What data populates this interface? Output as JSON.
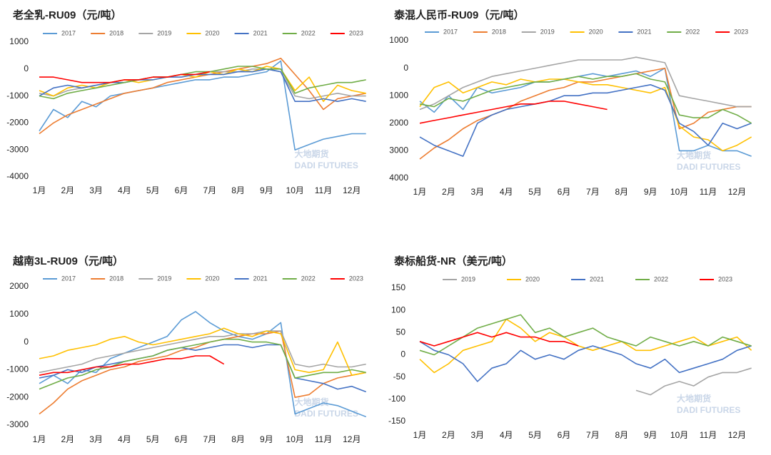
{
  "chart_data": [
    {
      "type": "line",
      "title": "老全乳-RU09（元/吨）",
      "watermark": [
        "大地期货",
        "DADI FUTURES"
      ],
      "categories": [
        "1月",
        null,
        "2月",
        null,
        "3月",
        null,
        "4月",
        null,
        "5月",
        null,
        "6月",
        null,
        "7月",
        null,
        "8月",
        null,
        "9月",
        null,
        "10月",
        null,
        "11月",
        null,
        "12月",
        null
      ],
      "ylim": [
        -4000,
        1000
      ],
      "yticks": [
        1000,
        0,
        -1000,
        -2000,
        -3000,
        -4000
      ],
      "series": [
        {
          "name": "2017",
          "color": "#5b9bd5",
          "values": [
            -2300,
            -1500,
            -1800,
            -1200,
            -1400,
            -1000,
            -900,
            -800,
            -700,
            -600,
            -500,
            -400,
            -400,
            -300,
            -300,
            -200,
            -100,
            300,
            -3000,
            -2800,
            -2600,
            -2500,
            -2400,
            -2400
          ]
        },
        {
          "name": "2018",
          "color": "#ed7d31",
          "values": [
            -2400,
            -2000,
            -1700,
            -1500,
            -1300,
            -1100,
            -900,
            -800,
            -700,
            -500,
            -400,
            -300,
            -200,
            -100,
            0,
            100,
            200,
            400,
            -200,
            -800,
            -1500,
            -1100,
            -1000,
            -900
          ]
        },
        {
          "name": "2019",
          "color": "#a5a5a5",
          "values": [
            -900,
            -1000,
            -800,
            -700,
            -600,
            -500,
            -400,
            -400,
            -300,
            -300,
            -200,
            -200,
            -100,
            -100,
            -100,
            0,
            0,
            -100,
            -1000,
            -1100,
            -1000,
            -900,
            -1000,
            -1000
          ]
        },
        {
          "name": "2020",
          "color": "#ffc000",
          "values": [
            -800,
            -1000,
            -700,
            -600,
            -700,
            -500,
            -400,
            -500,
            -400,
            -300,
            -200,
            -300,
            -100,
            -200,
            0,
            -100,
            100,
            0,
            -800,
            -300,
            -1200,
            -600,
            -800,
            -900
          ]
        },
        {
          "name": "2021",
          "color": "#4472c4",
          "values": [
            -1000,
            -700,
            -600,
            -700,
            -600,
            -500,
            -500,
            -400,
            -400,
            -300,
            -300,
            -200,
            -200,
            -200,
            -100,
            -100,
            0,
            -100,
            -1200,
            -1200,
            -1100,
            -1200,
            -1100,
            -1200
          ]
        },
        {
          "name": "2022",
          "color": "#70ad47",
          "values": [
            -1000,
            -1100,
            -900,
            -800,
            -700,
            -600,
            -500,
            -400,
            -300,
            -300,
            -200,
            -100,
            -100,
            0,
            100,
            100,
            0,
            0,
            -900,
            -700,
            -600,
            -500,
            -500,
            -400
          ]
        },
        {
          "name": "2023",
          "color": "#ff0000",
          "values": [
            -300,
            -300,
            -400,
            -500,
            -500,
            -500,
            -400,
            -400,
            -300,
            -300,
            -200,
            -200,
            -100,
            null,
            null,
            null,
            null,
            null,
            null,
            null,
            null,
            null,
            null,
            null
          ]
        }
      ]
    },
    {
      "type": "line",
      "title": "泰混人民币-RU09（元/吨）",
      "watermark": [
        "大地期货",
        "DADI FUTURES"
      ],
      "categories": [
        "1月",
        null,
        "2月",
        null,
        "3月",
        null,
        "4月",
        null,
        "5月",
        null,
        "6月",
        null,
        "7月",
        null,
        "8月",
        null,
        "9月",
        null,
        "10月",
        null,
        "11月",
        null,
        "12月",
        null
      ],
      "ylim": [
        -4000,
        1000
      ],
      "yticks": [
        1000,
        0,
        {
          "value": -1000,
          "label": "1000"
        },
        {
          "value": -2000,
          "label": "2000"
        },
        {
          "value": -3000,
          "label": "3000"
        },
        {
          "value": -4000,
          "label": "4000"
        }
      ],
      "series": [
        {
          "name": "2017",
          "color": "#5b9bd5",
          "values": [
            -1200,
            -1600,
            -1000,
            -1500,
            -700,
            -900,
            -800,
            -700,
            -500,
            -500,
            -400,
            -300,
            -200,
            -300,
            -200,
            -100,
            -300,
            0,
            -3000,
            -3000,
            -2800,
            -3000,
            -3000,
            -3200
          ]
        },
        {
          "name": "2018",
          "color": "#ed7d31",
          "values": [
            -3300,
            -2900,
            -2600,
            -2200,
            -1900,
            -1700,
            -1500,
            -1200,
            -1000,
            -800,
            -700,
            -500,
            -500,
            -400,
            -300,
            -200,
            -100,
            0,
            -2200,
            -2000,
            -1600,
            -1500,
            -1400,
            -1400
          ]
        },
        {
          "name": "2019",
          "color": "#a5a5a5",
          "values": [
            -1500,
            -1300,
            -1000,
            -700,
            -500,
            -300,
            -200,
            -100,
            0,
            100,
            200,
            300,
            300,
            300,
            300,
            400,
            300,
            200,
            -1000,
            -1100,
            -1200,
            -1300,
            -1400,
            -1400
          ]
        },
        {
          "name": "2020",
          "color": "#ffc000",
          "values": [
            -1400,
            -700,
            -500,
            -900,
            -700,
            -500,
            -600,
            -400,
            -500,
            -400,
            -400,
            -500,
            -600,
            -600,
            -700,
            -800,
            -900,
            -700,
            -2100,
            -2500,
            -2600,
            -3000,
            -2800,
            -2500
          ]
        },
        {
          "name": "2021",
          "color": "#4472c4",
          "values": [
            -2500,
            -2800,
            -3000,
            -3200,
            -2000,
            -1700,
            -1500,
            -1400,
            -1300,
            -1200,
            -1000,
            -1000,
            -900,
            -900,
            -800,
            -700,
            -600,
            -800,
            -2000,
            -2300,
            -2800,
            -2000,
            -2200,
            -2000
          ]
        },
        {
          "name": "2022",
          "color": "#70ad47",
          "values": [
            -1300,
            -1400,
            -1100,
            -1200,
            -1000,
            -800,
            -700,
            -600,
            -500,
            -500,
            -400,
            -300,
            -400,
            -300,
            -300,
            -200,
            -400,
            -500,
            -1700,
            -1800,
            -1800,
            -1500,
            -1700,
            -2000
          ]
        },
        {
          "name": "2023",
          "color": "#ff0000",
          "values": [
            -2000,
            -1900,
            -1800,
            -1700,
            -1600,
            -1500,
            -1400,
            -1300,
            -1300,
            -1200,
            -1200,
            -1300,
            -1400,
            -1500,
            null,
            null,
            null,
            null,
            null,
            null,
            null,
            null,
            null,
            null
          ]
        }
      ]
    },
    {
      "type": "line",
      "title": "越南3L-RU09（元/吨）",
      "watermark": [
        "大地期货",
        "DADI FUTURES"
      ],
      "categories": [
        "1月",
        null,
        "2月",
        null,
        "3月",
        null,
        "4月",
        null,
        "5月",
        null,
        "6月",
        null,
        "7月",
        null,
        "8月",
        null,
        "9月",
        null,
        "10月",
        null,
        "11月",
        null,
        "12月",
        null
      ],
      "ylim": [
        -3000,
        2000
      ],
      "yticks": [
        2000,
        1000,
        0,
        -1000,
        -2000,
        -3000
      ],
      "series": [
        {
          "name": "2017",
          "color": "#5b9bd5",
          "values": [
            -1500,
            -1200,
            -1500,
            -1000,
            -1100,
            -600,
            -400,
            -200,
            0,
            200,
            800,
            1100,
            700,
            400,
            200,
            100,
            300,
            700,
            -2600,
            -2400,
            -2200,
            -2300,
            -2500,
            -2700
          ]
        },
        {
          "name": "2018",
          "color": "#ed7d31",
          "values": [
            -2600,
            -2200,
            -1700,
            -1400,
            -1200,
            -1000,
            -900,
            -700,
            -600,
            -500,
            -300,
            -200,
            0,
            100,
            200,
            300,
            300,
            400,
            -2000,
            -1900,
            -1500,
            -1300,
            -1200,
            -1100
          ]
        },
        {
          "name": "2019",
          "color": "#a5a5a5",
          "values": [
            -1100,
            -1000,
            -900,
            -800,
            -600,
            -500,
            -400,
            -300,
            -200,
            -100,
            0,
            100,
            200,
            200,
            300,
            300,
            400,
            400,
            -800,
            -900,
            -800,
            -900,
            -900,
            -800
          ]
        },
        {
          "name": "2020",
          "color": "#ffc000",
          "values": [
            -600,
            -500,
            -300,
            -200,
            -100,
            100,
            200,
            0,
            -100,
            0,
            100,
            200,
            300,
            500,
            300,
            200,
            400,
            300,
            -1000,
            -1100,
            -1000,
            0,
            -1200,
            -1100
          ]
        },
        {
          "name": "2021",
          "color": "#4472c4",
          "values": [
            -1300,
            -1200,
            -1000,
            -1100,
            -900,
            -800,
            -700,
            -600,
            -500,
            -300,
            -200,
            -300,
            -200,
            -100,
            -100,
            -200,
            -100,
            -100,
            -1300,
            -1400,
            -1500,
            -1700,
            -1600,
            -1800
          ]
        },
        {
          "name": "2022",
          "color": "#70ad47",
          "values": [
            -1700,
            -1500,
            -1300,
            -1200,
            -1000,
            -900,
            -700,
            -600,
            -500,
            -300,
            -200,
            -100,
            0,
            100,
            100,
            0,
            0,
            -100,
            -1300,
            -1200,
            -1100,
            -1100,
            -1000,
            -1100
          ]
        },
        {
          "name": "2023",
          "color": "#ff0000",
          "values": [
            -1200,
            -1100,
            -1100,
            -1000,
            -900,
            -900,
            -800,
            -800,
            -700,
            -600,
            -600,
            -500,
            -500,
            -800,
            null,
            null,
            null,
            null,
            null,
            null,
            null,
            null,
            null,
            null
          ]
        }
      ]
    },
    {
      "type": "line",
      "title": "泰标船货-NR（美元/吨）",
      "watermark": [
        "大地期货",
        "DADI FUTURES"
      ],
      "categories": [
        "1月",
        null,
        "2月",
        null,
        "3月",
        null,
        "4月",
        null,
        "5月",
        null,
        "6月",
        null,
        "7月",
        null,
        "8月",
        null,
        "9月",
        null,
        "10月",
        null,
        "11月",
        null,
        "12月",
        null
      ],
      "ylim": [
        -150,
        150
      ],
      "yticks": [
        150,
        100,
        50,
        0,
        -50,
        -100,
        -150
      ],
      "series": [
        {
          "name": "2019",
          "color": "#a5a5a5",
          "values": [
            null,
            null,
            null,
            null,
            null,
            null,
            null,
            null,
            null,
            null,
            null,
            null,
            null,
            null,
            null,
            -80,
            -90,
            -70,
            -60,
            -70,
            -50,
            -40,
            -40,
            -30
          ]
        },
        {
          "name": "2020",
          "color": "#ffc000",
          "values": [
            -10,
            -40,
            -20,
            10,
            20,
            30,
            80,
            60,
            30,
            50,
            40,
            20,
            10,
            20,
            30,
            10,
            10,
            20,
            30,
            40,
            20,
            30,
            40,
            10
          ]
        },
        {
          "name": "2021",
          "color": "#4472c4",
          "values": [
            30,
            10,
            0,
            -20,
            -60,
            -30,
            -20,
            10,
            -10,
            0,
            -10,
            10,
            20,
            10,
            0,
            -20,
            -30,
            -10,
            -40,
            -30,
            -20,
            -10,
            10,
            20
          ]
        },
        {
          "name": "2022",
          "color": "#70ad47",
          "values": [
            10,
            0,
            20,
            40,
            60,
            70,
            80,
            90,
            50,
            60,
            40,
            50,
            60,
            40,
            30,
            20,
            40,
            30,
            20,
            30,
            20,
            40,
            30,
            20
          ]
        },
        {
          "name": "2023",
          "color": "#ff0000",
          "values": [
            30,
            20,
            30,
            40,
            50,
            40,
            50,
            40,
            40,
            30,
            30,
            20,
            null,
            null,
            null,
            null,
            null,
            null,
            null,
            null,
            null,
            null,
            null,
            null
          ]
        }
      ]
    }
  ]
}
